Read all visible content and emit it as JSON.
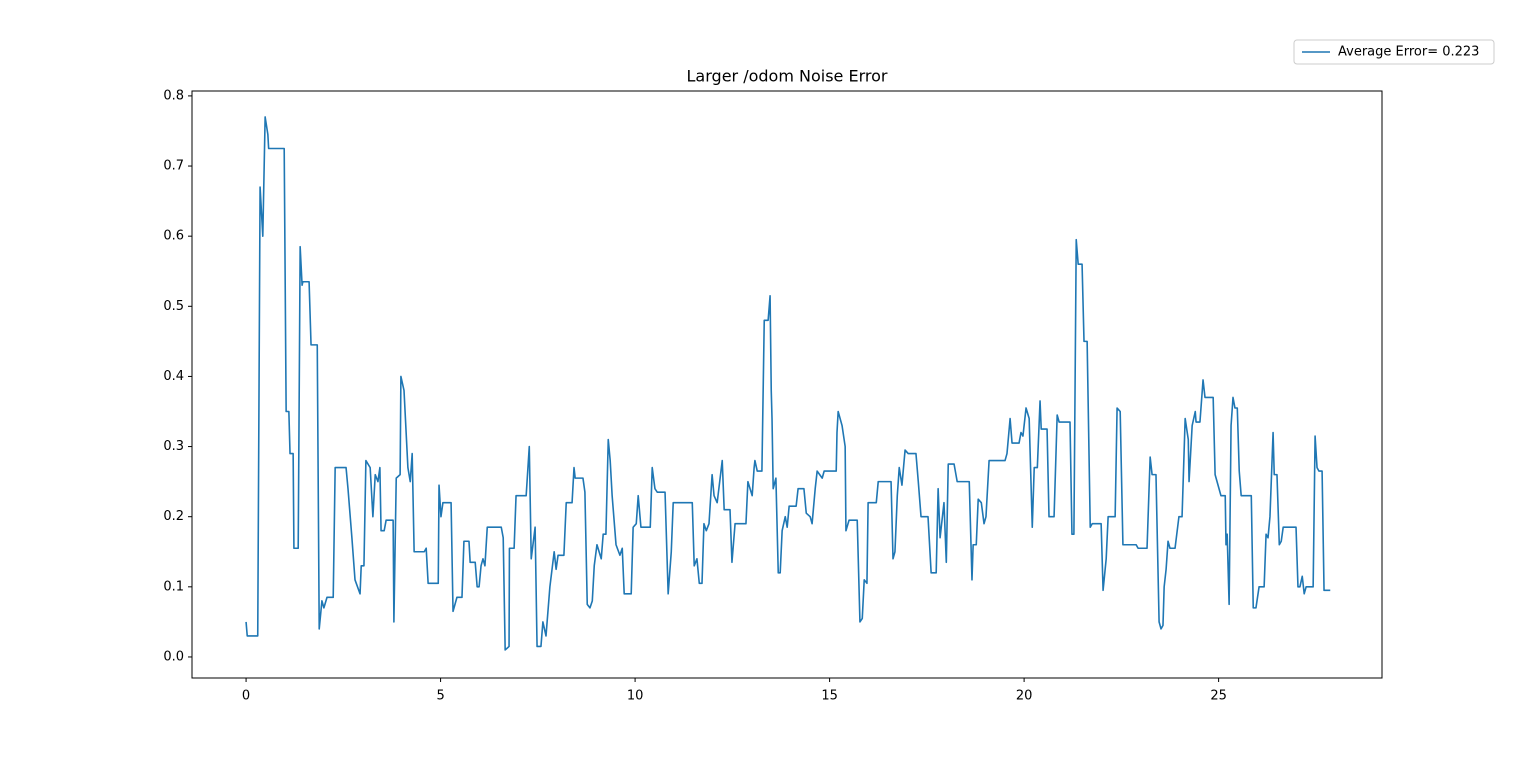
{
  "chart_data": {
    "type": "line",
    "title": "Larger /odom Noise Error",
    "x": [
      0,
      0.03,
      0.3,
      0.36,
      0.43,
      0.49,
      0.56,
      0.58,
      0.98,
      1.03,
      1.1,
      1.13,
      1.21,
      1.23,
      1.34,
      1.39,
      1.44,
      1.46,
      1.62,
      1.67,
      1.83,
      1.88,
      1.95,
      2.0,
      2.08,
      2.24,
      2.29,
      2.57,
      2.62,
      2.72,
      2.8,
      2.93,
      2.96,
      3.03,
      3.08,
      3.19,
      3.26,
      3.32,
      3.39,
      3.44,
      3.47,
      3.55,
      3.6,
      3.78,
      3.8,
      3.86,
      3.96,
      3.98,
      4.06,
      4.16,
      4.22,
      4.27,
      4.32,
      4.58,
      4.63,
      4.68,
      4.94,
      4.96,
      5.01,
      5.06,
      5.27,
      5.32,
      5.42,
      5.55,
      5.6,
      5.73,
      5.76,
      5.89,
      5.94,
      5.99,
      6.04,
      6.09,
      6.14,
      6.2,
      6.56,
      6.61,
      6.66,
      6.76,
      6.77,
      6.89,
      6.94,
      7.2,
      7.28,
      7.33,
      7.43,
      7.48,
      7.58,
      7.63,
      7.71,
      7.81,
      7.92,
      7.97,
      8.02,
      8.17,
      8.23,
      8.38,
      8.43,
      8.46,
      8.66,
      8.71,
      8.77,
      8.84,
      8.9,
      8.95,
      9.02,
      9.13,
      9.18,
      9.25,
      9.31,
      9.36,
      9.41,
      9.51,
      9.61,
      9.67,
      9.72,
      9.9,
      9.95,
      10.03,
      10.08,
      10.15,
      10.39,
      10.44,
      10.51,
      10.57,
      10.77,
      10.85,
      10.93,
      10.98,
      11.47,
      11.52,
      11.59,
      11.65,
      11.72,
      11.77,
      11.83,
      11.9,
      11.98,
      12.03,
      12.11,
      12.24,
      12.29,
      12.44,
      12.49,
      12.57,
      12.85,
      12.9,
      13.01,
      13.06,
      13.08,
      13.14,
      13.26,
      13.32,
      13.42,
      13.47,
      13.5,
      13.52,
      13.55,
      13.62,
      13.68,
      13.73,
      13.78,
      13.86,
      13.91,
      13.96,
      14.14,
      14.19,
      14.34,
      14.4,
      14.5,
      14.55,
      14.63,
      14.68,
      14.81,
      14.86,
      15.17,
      15.19,
      15.22,
      15.32,
      15.4,
      15.42,
      15.5,
      15.71,
      15.78,
      15.84,
      15.89,
      15.96,
      15.99,
      16.2,
      16.25,
      16.58,
      16.63,
      16.68,
      16.74,
      16.79,
      16.86,
      16.94,
      17.02,
      17.22,
      17.28,
      17.35,
      17.53,
      17.61,
      17.74,
      17.79,
      17.84,
      17.94,
      18.0,
      18.05,
      18.2,
      18.28,
      18.59,
      18.66,
      18.69,
      18.77,
      18.82,
      18.9,
      18.97,
      19.02,
      19.1,
      19.51,
      19.56,
      19.64,
      19.69,
      19.87,
      19.92,
      19.97,
      20.05,
      20.13,
      20.21,
      20.26,
      20.34,
      20.41,
      20.44,
      20.59,
      20.64,
      20.77,
      20.85,
      20.9,
      21.18,
      21.23,
      21.28,
      21.34,
      21.39,
      21.49,
      21.54,
      21.62,
      21.7,
      21.75,
      21.98,
      22.03,
      22.11,
      22.16,
      22.34,
      22.39,
      22.47,
      22.54,
      22.88,
      22.93,
      23.16,
      23.24,
      23.29,
      23.39,
      23.47,
      23.52,
      23.57,
      23.6,
      23.65,
      23.7,
      23.75,
      23.88,
      23.98,
      24.06,
      24.14,
      24.22,
      24.24,
      24.32,
      24.4,
      24.42,
      24.52,
      24.6,
      24.65,
      24.86,
      24.91,
      25.01,
      25.06,
      25.17,
      25.19,
      25.22,
      25.27,
      25.32,
      25.37,
      25.42,
      25.48,
      25.53,
      25.58,
      25.84,
      25.89,
      25.96,
      26.04,
      26.17,
      26.22,
      26.27,
      26.32,
      26.4,
      26.43,
      26.5,
      26.56,
      26.61,
      26.66,
      26.99,
      27.04,
      27.09,
      27.15,
      27.2,
      27.25,
      27.43,
      27.48,
      27.53,
      27.58,
      27.66,
      27.71,
      27.87
    ],
    "series": [
      {
        "name": "Average Error= 0.223",
        "color": "#1f77b4",
        "values": [
          0.05,
          0.03,
          0.03,
          0.67,
          0.6,
          0.77,
          0.745,
          0.725,
          0.725,
          0.35,
          0.35,
          0.29,
          0.29,
          0.155,
          0.155,
          0.585,
          0.53,
          0.535,
          0.535,
          0.445,
          0.445,
          0.04,
          0.08,
          0.07,
          0.085,
          0.085,
          0.27,
          0.27,
          0.24,
          0.17,
          0.11,
          0.09,
          0.13,
          0.13,
          0.28,
          0.27,
          0.2,
          0.26,
          0.25,
          0.27,
          0.18,
          0.18,
          0.195,
          0.195,
          0.05,
          0.255,
          0.26,
          0.4,
          0.38,
          0.27,
          0.25,
          0.29,
          0.15,
          0.15,
          0.155,
          0.105,
          0.105,
          0.245,
          0.2,
          0.22,
          0.22,
          0.065,
          0.085,
          0.085,
          0.165,
          0.165,
          0.135,
          0.135,
          0.1,
          0.1,
          0.13,
          0.14,
          0.13,
          0.185,
          0.185,
          0.17,
          0.01,
          0.015,
          0.155,
          0.155,
          0.23,
          0.23,
          0.3,
          0.14,
          0.185,
          0.015,
          0.015,
          0.05,
          0.03,
          0.1,
          0.15,
          0.125,
          0.145,
          0.145,
          0.22,
          0.22,
          0.27,
          0.255,
          0.255,
          0.235,
          0.075,
          0.07,
          0.08,
          0.13,
          0.16,
          0.14,
          0.175,
          0.175,
          0.31,
          0.28,
          0.23,
          0.16,
          0.145,
          0.155,
          0.09,
          0.09,
          0.185,
          0.19,
          0.23,
          0.185,
          0.185,
          0.27,
          0.24,
          0.235,
          0.235,
          0.09,
          0.15,
          0.22,
          0.22,
          0.13,
          0.14,
          0.105,
          0.105,
          0.19,
          0.18,
          0.19,
          0.26,
          0.23,
          0.22,
          0.28,
          0.21,
          0.21,
          0.135,
          0.19,
          0.19,
          0.25,
          0.23,
          0.27,
          0.28,
          0.265,
          0.265,
          0.48,
          0.48,
          0.515,
          0.38,
          0.34,
          0.24,
          0.255,
          0.12,
          0.12,
          0.18,
          0.2,
          0.185,
          0.215,
          0.215,
          0.24,
          0.24,
          0.205,
          0.2,
          0.19,
          0.24,
          0.265,
          0.255,
          0.265,
          0.265,
          0.32,
          0.35,
          0.33,
          0.3,
          0.18,
          0.195,
          0.195,
          0.05,
          0.055,
          0.11,
          0.105,
          0.22,
          0.22,
          0.25,
          0.25,
          0.14,
          0.15,
          0.23,
          0.27,
          0.245,
          0.295,
          0.29,
          0.29,
          0.25,
          0.2,
          0.2,
          0.12,
          0.12,
          0.24,
          0.17,
          0.22,
          0.135,
          0.275,
          0.275,
          0.25,
          0.25,
          0.11,
          0.16,
          0.16,
          0.225,
          0.22,
          0.19,
          0.2,
          0.28,
          0.28,
          0.29,
          0.34,
          0.305,
          0.305,
          0.32,
          0.315,
          0.355,
          0.34,
          0.185,
          0.27,
          0.27,
          0.365,
          0.325,
          0.325,
          0.2,
          0.2,
          0.345,
          0.335,
          0.335,
          0.175,
          0.175,
          0.595,
          0.56,
          0.56,
          0.45,
          0.45,
          0.185,
          0.19,
          0.19,
          0.095,
          0.14,
          0.2,
          0.2,
          0.355,
          0.35,
          0.16,
          0.16,
          0.155,
          0.155,
          0.285,
          0.26,
          0.26,
          0.05,
          0.04,
          0.045,
          0.1,
          0.125,
          0.165,
          0.155,
          0.155,
          0.2,
          0.2,
          0.34,
          0.31,
          0.25,
          0.33,
          0.35,
          0.335,
          0.335,
          0.395,
          0.37,
          0.37,
          0.26,
          0.24,
          0.23,
          0.23,
          0.16,
          0.175,
          0.075,
          0.33,
          0.37,
          0.355,
          0.355,
          0.265,
          0.23,
          0.23,
          0.07,
          0.07,
          0.1,
          0.1,
          0.175,
          0.17,
          0.2,
          0.32,
          0.26,
          0.26,
          0.16,
          0.165,
          0.185,
          0.185,
          0.1,
          0.1,
          0.115,
          0.09,
          0.1,
          0.1,
          0.315,
          0.27,
          0.265,
          0.265,
          0.095,
          0.095
        ]
      }
    ],
    "xlim": [
      -1.39,
      29.2
    ],
    "ylim": [
      -0.03,
      0.807
    ],
    "xticks": [
      0,
      5,
      10,
      15,
      20,
      25
    ],
    "yticks": [
      {
        "value": 0,
        "label": "0.0"
      },
      0.1,
      0.2,
      0.3,
      0.4,
      0.5,
      0.6,
      0.7,
      0.8
    ],
    "grid": false,
    "legend": "upper right"
  }
}
